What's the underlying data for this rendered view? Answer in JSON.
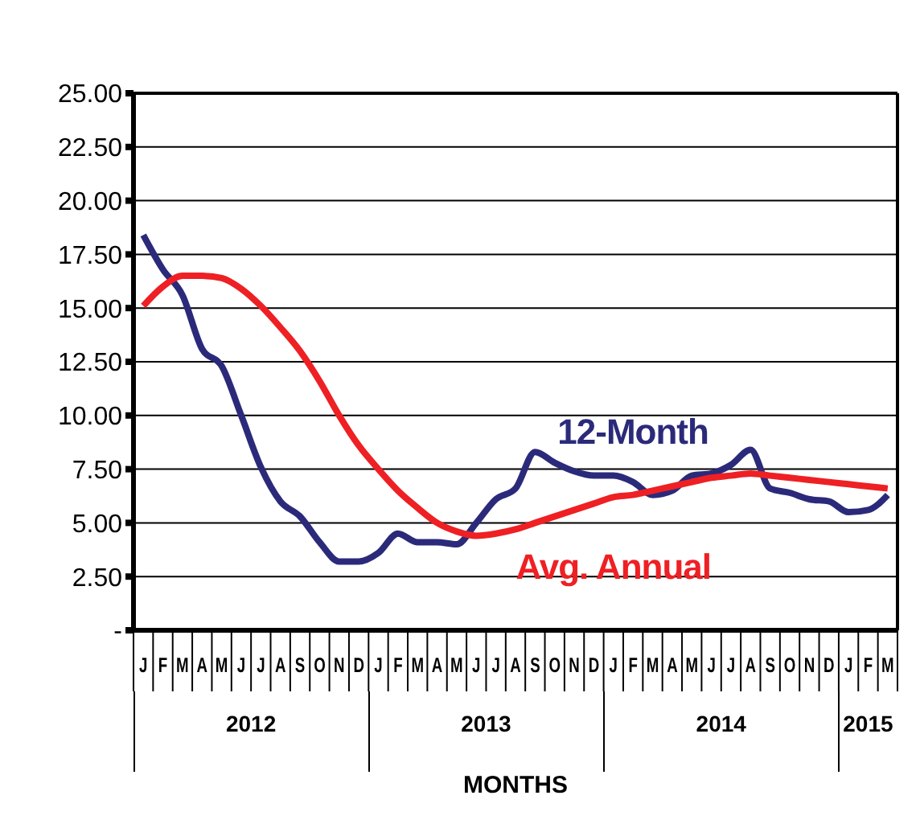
{
  "chart_data": {
    "type": "line",
    "xlabel": "MONTHS",
    "categories": [
      "J",
      "F",
      "M",
      "A",
      "M",
      "J",
      "J",
      "A",
      "S",
      "O",
      "N",
      "D",
      "J",
      "F",
      "M",
      "A",
      "M",
      "J",
      "J",
      "A",
      "S",
      "O",
      "N",
      "D",
      "J",
      "F",
      "M",
      "A",
      "M",
      "J",
      "J",
      "A",
      "S",
      "O",
      "N",
      "D",
      "J",
      "F",
      "M"
    ],
    "annotations": [
      "2012",
      "2013",
      "2014",
      "2015"
    ],
    "series": [
      {
        "name": "12-Month",
        "color": "#2b2a7a",
        "values": [
          18.4,
          16.8,
          15.6,
          13.1,
          12.3,
          10.0,
          7.6,
          6.0,
          5.3,
          4.1,
          3.2,
          3.2,
          3.6,
          4.5,
          4.1,
          4.1,
          4.0,
          5.0,
          6.1,
          6.6,
          8.3,
          7.8,
          7.4,
          7.2,
          7.2,
          6.9,
          6.3,
          6.5,
          7.2,
          7.3,
          7.7,
          8.4,
          6.6,
          6.4,
          6.1,
          6.0,
          5.5,
          5.6,
          6.3
        ]
      },
      {
        "name": "Avg. Annual",
        "color": "#ee2024",
        "values": [
          15.1,
          16.0,
          16.5,
          16.5,
          16.4,
          15.9,
          15.1,
          14.1,
          13.0,
          11.6,
          10.0,
          8.6,
          7.5,
          6.5,
          5.7,
          5.0,
          4.6,
          4.4,
          4.5,
          4.7,
          5.0,
          5.3,
          5.6,
          5.9,
          6.2,
          6.3,
          6.5,
          6.7,
          6.9,
          7.1,
          7.2,
          7.3,
          7.2,
          7.1,
          7.0,
          6.9,
          6.8,
          6.7,
          6.6
        ]
      }
    ],
    "ylim": [
      0,
      25
    ],
    "yticks": [
      {
        "value": 0,
        "label": "-"
      },
      {
        "value": 2.5,
        "label": "2.50"
      },
      {
        "value": 5,
        "label": "5.00"
      },
      {
        "value": 7.5,
        "label": "7.50"
      },
      {
        "value": 10,
        "label": "10.00"
      },
      {
        "value": 12.5,
        "label": "12.50"
      },
      {
        "value": 15,
        "label": "15.00"
      },
      {
        "value": 17.5,
        "label": "17.50"
      },
      {
        "value": 20,
        "label": "20.00"
      },
      {
        "value": 22.5,
        "label": "22.50"
      },
      {
        "value": 25,
        "label": "25.00"
      }
    ],
    "grid": "y",
    "marker": "none",
    "line_style": "solid"
  }
}
